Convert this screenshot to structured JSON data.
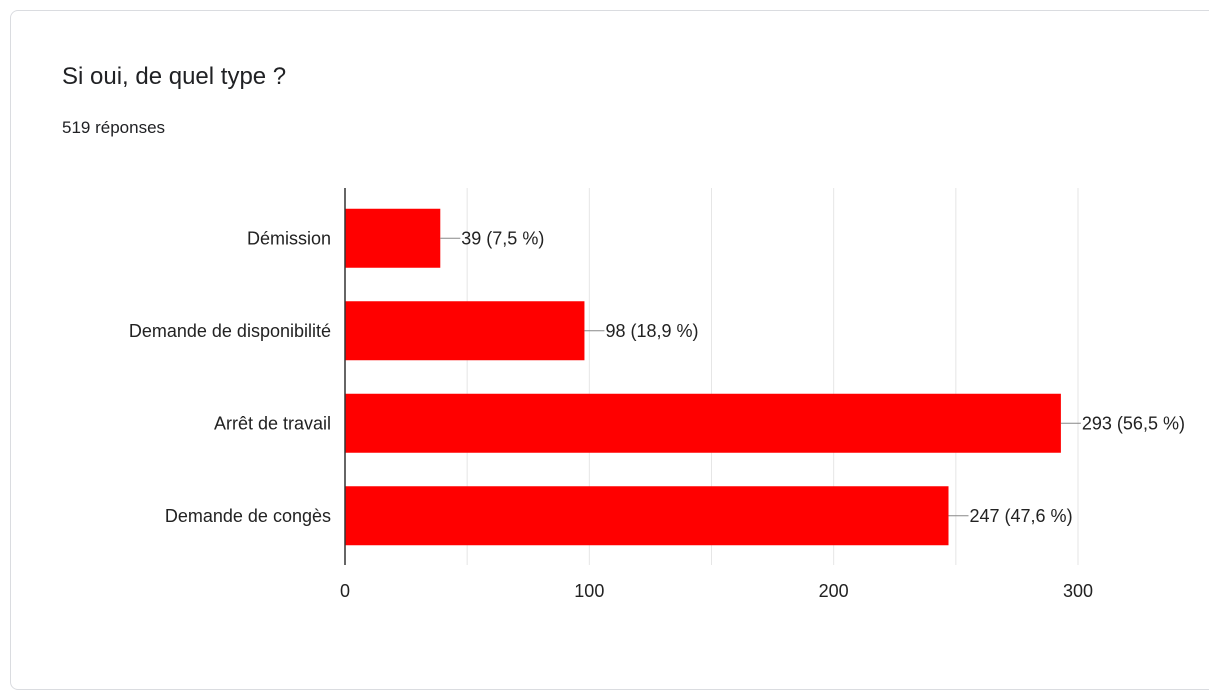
{
  "header": {
    "question": "Si oui, de quel type ?",
    "responses": "519 réponses"
  },
  "chart_data": {
    "type": "bar",
    "orientation": "horizontal",
    "categories": [
      "Démission",
      "Demande de disponibilité",
      "Arrêt de travail",
      "Demande de congès"
    ],
    "values": [
      39,
      98,
      293,
      247
    ],
    "data_labels": [
      "39 (7,5 %)",
      "98 (18,9 %)",
      "293 (56,5 %)",
      "247 (47,6 %)"
    ],
    "xlim": [
      0,
      300
    ],
    "x_ticks": [
      0,
      100,
      200,
      300
    ],
    "grid": true,
    "bar_color": "#ff0000"
  }
}
